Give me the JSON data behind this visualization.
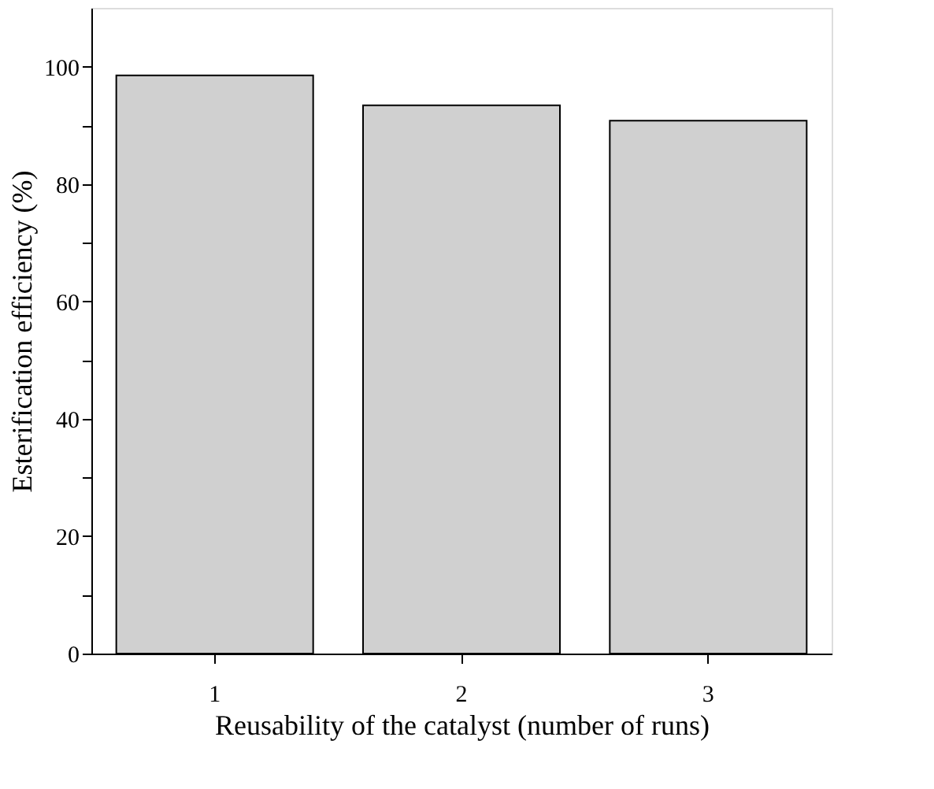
{
  "chart_data": {
    "type": "bar",
    "xlabel": "Reusability of the catalyst (number of runs)",
    "ylabel": "Esterification efficiency (%)",
    "categories": [
      "1",
      "2",
      "3"
    ],
    "values": [
      98.5,
      93.4,
      90.8
    ],
    "color": "#d0d0d0",
    "ylim": [
      0,
      110
    ],
    "yticks": [
      0,
      {
        "value": 10,
        "label": null
      },
      20,
      {
        "value": 30,
        "label": null
      },
      40,
      {
        "value": 50,
        "label": null
      },
      60,
      {
        "value": 70,
        "label": null
      },
      80,
      {
        "value": 90,
        "label": null
      },
      100
    ],
    "grid": false
  }
}
